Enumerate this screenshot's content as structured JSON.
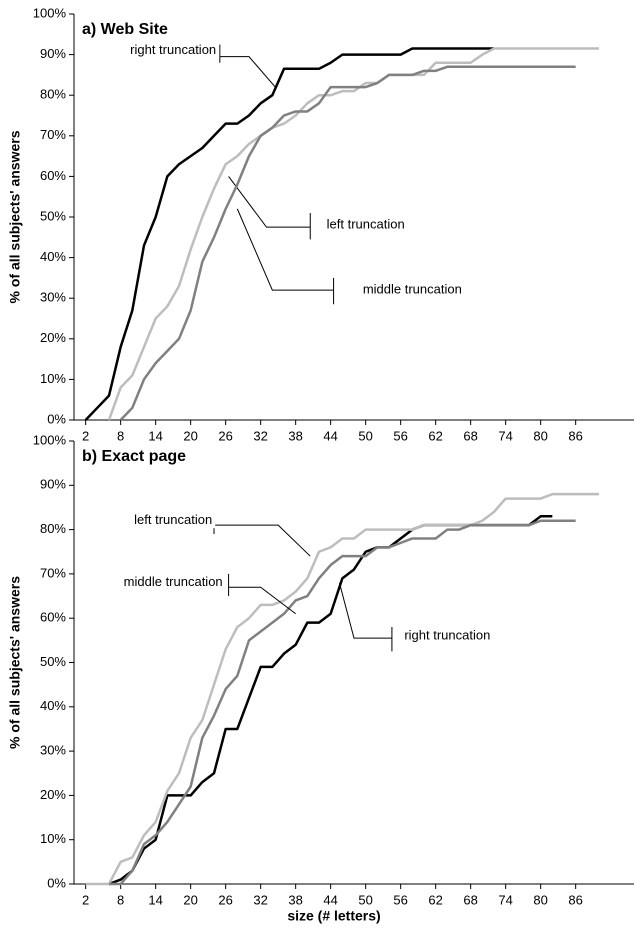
{
  "chart_data": [
    {
      "type": "line",
      "title": "a) Web Site",
      "ylabel": "% of all subjects' answers",
      "x": [
        2,
        4,
        6,
        8,
        10,
        12,
        14,
        16,
        18,
        20,
        22,
        24,
        26,
        28,
        30,
        32,
        34,
        36,
        38,
        40,
        42,
        44,
        46,
        48,
        50,
        52,
        54,
        56,
        58,
        60,
        62,
        64,
        66,
        68,
        70,
        72,
        74,
        76,
        78,
        80,
        82,
        84,
        86,
        88,
        90
      ],
      "xlim": [
        0,
        96
      ],
      "xticks": [
        2,
        8,
        14,
        20,
        26,
        32,
        38,
        44,
        50,
        56,
        62,
        68,
        74,
        80,
        86
      ],
      "ylim": [
        0,
        100
      ],
      "yticks": [
        {
          "value": 0,
          "label": "0%"
        },
        {
          "value": 10,
          "label": "10%"
        },
        {
          "value": 20,
          "label": "20%"
        },
        {
          "value": 30,
          "label": "30%"
        },
        {
          "value": 40,
          "label": "40%"
        },
        {
          "value": 50,
          "label": "50%"
        },
        {
          "value": 60,
          "label": "60%"
        },
        {
          "value": 70,
          "label": "70%"
        },
        {
          "value": 80,
          "label": "80%"
        },
        {
          "value": 90,
          "label": "90%"
        },
        {
          "value": 100,
          "label": "100%"
        }
      ],
      "series": [
        {
          "name": "right truncation",
          "color": "#000000",
          "values": [
            0,
            3,
            6,
            18,
            27,
            43,
            50,
            60,
            63,
            65,
            67,
            70,
            73,
            73,
            75,
            78,
            80,
            86.5,
            86.5,
            86.5,
            86.5,
            88,
            90,
            90,
            90,
            90,
            90,
            90,
            91.5,
            91.5,
            91.5,
            91.5,
            91.5,
            91.5,
            91.5,
            91.5,
            null,
            null,
            null,
            null,
            null,
            null,
            null,
            null,
            null
          ]
        },
        {
          "name": "left truncation",
          "color": "#bdbdbd",
          "values": [
            null,
            null,
            0,
            8,
            11,
            18,
            25,
            28,
            33,
            42,
            50,
            57,
            63,
            65,
            68,
            70,
            72,
            73,
            75,
            78,
            80,
            80,
            81,
            81,
            83,
            83,
            85,
            85,
            85,
            85,
            88,
            88,
            88,
            88,
            90,
            91.5,
            91.5,
            91.5,
            91.5,
            91.5,
            91.5,
            91.5,
            91.5,
            91.5,
            91.5
          ]
        },
        {
          "name": "middle truncation",
          "color": "#808080",
          "values": [
            null,
            null,
            null,
            0,
            3,
            10,
            14,
            17,
            20,
            27,
            39,
            45,
            52,
            58,
            65,
            70,
            72,
            75,
            76,
            76,
            78,
            82,
            82,
            82,
            82,
            83,
            85,
            85,
            85,
            86,
            86,
            87,
            87,
            87,
            87,
            87,
            87,
            87,
            87,
            87,
            87,
            87,
            87,
            null,
            null
          ]
        }
      ]
    },
    {
      "type": "line",
      "title": "b) Exact page",
      "ylabel": "% of all subjects' answers",
      "xlabel": "size (# letters)",
      "x": [
        2,
        4,
        6,
        8,
        10,
        12,
        14,
        16,
        18,
        20,
        22,
        24,
        26,
        28,
        30,
        32,
        34,
        36,
        38,
        40,
        42,
        44,
        46,
        48,
        50,
        52,
        54,
        56,
        58,
        60,
        62,
        64,
        66,
        68,
        70,
        72,
        74,
        76,
        78,
        80,
        82,
        84,
        86,
        88,
        90
      ],
      "xlim": [
        0,
        96
      ],
      "xticks": [
        2,
        8,
        14,
        20,
        26,
        32,
        38,
        44,
        50,
        56,
        62,
        68,
        74,
        80,
        86
      ],
      "ylim": [
        0,
        100
      ],
      "yticks": [
        {
          "value": 0,
          "label": "0%"
        },
        {
          "value": 10,
          "label": "10%"
        },
        {
          "value": 20,
          "label": "20%"
        },
        {
          "value": 30,
          "label": "30%"
        },
        {
          "value": 40,
          "label": "40%"
        },
        {
          "value": 50,
          "label": "50%"
        },
        {
          "value": 60,
          "label": "60%"
        },
        {
          "value": 70,
          "label": "70%"
        },
        {
          "value": 80,
          "label": "80%"
        },
        {
          "value": 90,
          "label": "90%"
        },
        {
          "value": 100,
          "label": "100%"
        }
      ],
      "series": [
        {
          "name": "right truncation",
          "color": "#000000",
          "values": [
            null,
            null,
            0,
            1,
            3,
            8,
            10,
            20,
            20,
            20,
            23,
            25,
            35,
            35,
            42,
            49,
            49,
            52,
            54,
            59,
            59,
            61,
            69,
            71,
            75,
            76,
            76,
            78,
            80,
            81,
            81,
            81,
            81,
            81,
            81,
            81,
            81,
            81,
            81,
            83,
            83,
            null,
            null,
            null,
            null
          ]
        },
        {
          "name": "left truncation",
          "color": "#bdbdbd",
          "values": [
            0,
            0,
            0,
            5,
            6,
            11,
            14,
            21,
            25,
            33,
            37,
            45,
            53,
            58,
            60,
            63,
            63,
            64,
            66,
            69,
            75,
            76,
            78,
            78,
            80,
            80,
            80,
            80,
            80,
            81,
            81,
            81,
            81,
            81,
            82,
            84,
            87,
            87,
            87,
            87,
            88,
            88,
            88,
            88,
            88
          ]
        },
        {
          "name": "middle truncation",
          "color": "#808080",
          "values": [
            null,
            null,
            0,
            0,
            3,
            9,
            11,
            14,
            18,
            22,
            33,
            38,
            44,
            47,
            55,
            57,
            59,
            61,
            64,
            65,
            69,
            72,
            74,
            74,
            74,
            76,
            76,
            77,
            78,
            78,
            78,
            80,
            80,
            81,
            81,
            81,
            81,
            81,
            81,
            82,
            82,
            82,
            82,
            null,
            null
          ]
        }
      ]
    }
  ]
}
